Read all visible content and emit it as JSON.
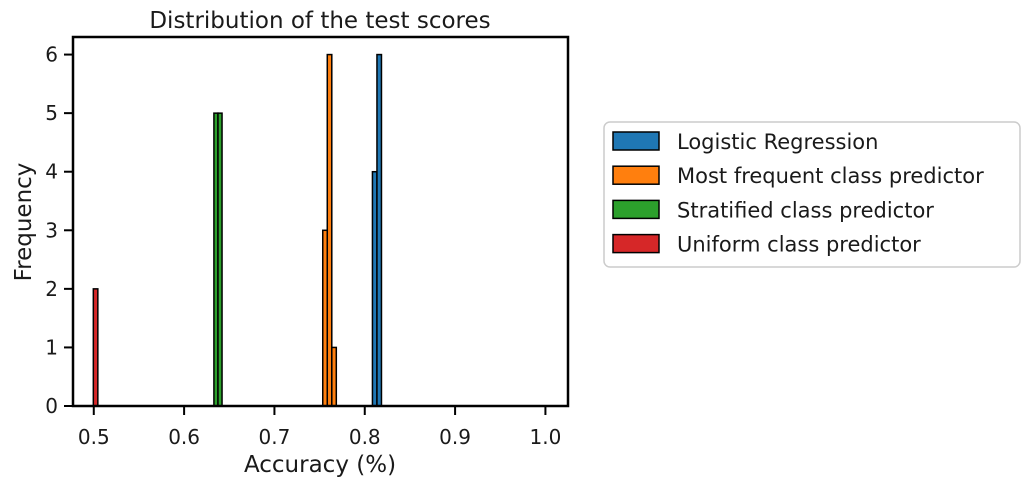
{
  "chart_data": {
    "type": "bar",
    "subtype": "histogram",
    "title": "Distribution of the test scores",
    "xlabel": "Accuracy (%)",
    "ylabel": "Frequency",
    "xlim": [
      0.477,
      1.025
    ],
    "ylim": [
      0,
      6.3
    ],
    "xticks": [
      "0.5",
      "0.6",
      "0.7",
      "0.8",
      "0.9",
      "1.0"
    ],
    "yticks": [
      "0",
      "1",
      "2",
      "3",
      "4",
      "5",
      "6"
    ],
    "grid": false,
    "legend_position": "outside-right",
    "series": [
      {
        "name": "Logistic Regression",
        "color": "#1f77b4",
        "bins": [
          {
            "x0": 0.8085,
            "x1": 0.8135,
            "count": 4
          },
          {
            "x0": 0.8135,
            "x1": 0.8185,
            "count": 6
          }
        ]
      },
      {
        "name": "Most frequent class predictor",
        "color": "#ff7f0e",
        "bins": [
          {
            "x0": 0.7535,
            "x1": 0.7585,
            "count": 3
          },
          {
            "x0": 0.7585,
            "x1": 0.7635,
            "count": 6
          },
          {
            "x0": 0.7635,
            "x1": 0.7685,
            "count": 1
          }
        ]
      },
      {
        "name": "Stratified class predictor",
        "color": "#2ca02c",
        "bins": [
          {
            "x0": 0.633,
            "x1": 0.6375,
            "count": 5
          },
          {
            "x0": 0.6375,
            "x1": 0.642,
            "count": 5
          }
        ]
      },
      {
        "name": "Uniform class predictor",
        "color": "#d62728",
        "bins": [
          {
            "x0": 0.4995,
            "x1": 0.5045,
            "count": 2
          }
        ]
      }
    ]
  }
}
